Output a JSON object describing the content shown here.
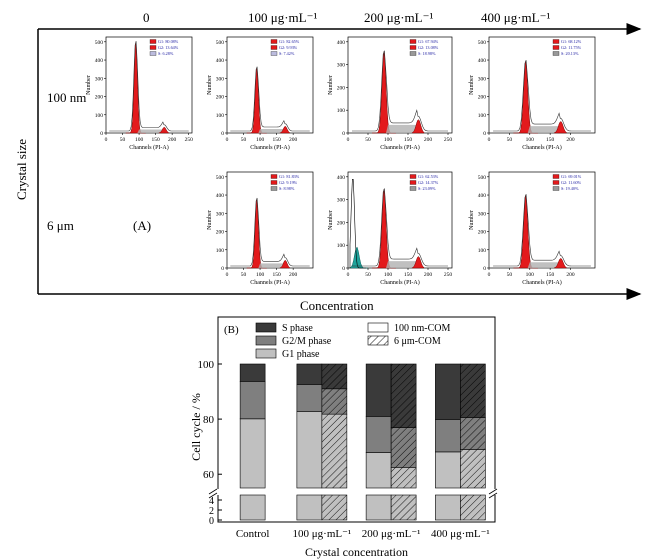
{
  "header": {
    "columns": [
      "0",
      "100 μg·mL⁻¹",
      "200 μg·mL⁻¹",
      "400 μg·mL⁻¹"
    ],
    "rows": [
      "100 nm",
      "6 μm"
    ],
    "y_axis_title": "Crystal size",
    "x_axis_title": "Concentration",
    "panel_a_label": "(A)"
  },
  "histograms": [
    {
      "id": "h00",
      "ylabel": "Number",
      "xlabel": "Channels (PI-A)",
      "yticks": [
        "0",
        "100",
        "200",
        "300",
        "400",
        "500"
      ],
      "xticks": [
        "0",
        "50",
        "100",
        "150",
        "200",
        "250"
      ],
      "legend": [
        "G1: 80.08%",
        "G2: 13.64%",
        "S: 6.28%"
      ],
      "legend_colors": [
        "#e31a1c",
        "#e31a1c",
        "#bbbbdd"
      ],
      "peak": 0.95,
      "g2": 0.06,
      "teal": false
    },
    {
      "id": "h01",
      "ylabel": "Number",
      "xlabel": "Channels (PI-A)",
      "yticks": [
        "0",
        "100",
        "200",
        "300",
        "400",
        "500"
      ],
      "xticks": [
        "0",
        "50",
        "100",
        "150",
        "200"
      ],
      "legend": [
        "G1: 82.65%",
        "G2: 9.93%",
        "S: 7.42%"
      ],
      "legend_colors": [
        "#e31a1c",
        "#e31a1c",
        "#bbbbdd"
      ],
      "peak": 0.68,
      "g2": 0.07,
      "teal": false
    },
    {
      "id": "h02",
      "ylabel": "Number",
      "xlabel": "Channels (PI-A)",
      "yticks": [
        "0",
        "100",
        "200",
        "300",
        "400"
      ],
      "xticks": [
        "0",
        "50",
        "100",
        "150",
        "200",
        "250"
      ],
      "legend": [
        "G1: 67.94%",
        "G2: 13.08%",
        "S: 18.98%"
      ],
      "legend_colors": [
        "#e31a1c",
        "#e31a1c",
        "#999999"
      ],
      "peak": 0.85,
      "g2": 0.14,
      "teal": false
    },
    {
      "id": "h03",
      "ylabel": "Number",
      "xlabel": "Channels (PI-A)",
      "yticks": [
        "0",
        "100",
        "200",
        "300",
        "400",
        "500"
      ],
      "xticks": [
        "0",
        "50",
        "100",
        "150",
        "200"
      ],
      "legend": [
        "G1: 68.12%",
        "G2: 11.75%",
        "S: 20.13%"
      ],
      "legend_colors": [
        "#e31a1c",
        "#e31a1c",
        "#999999"
      ],
      "peak": 0.75,
      "g2": 0.12,
      "teal": false
    },
    {
      "id": "h11",
      "ylabel": "Number",
      "xlabel": "Channels (PI-A)",
      "yticks": [
        "0",
        "100",
        "200",
        "300",
        "400",
        "500"
      ],
      "xticks": [
        "0",
        "50",
        "100",
        "150",
        "200"
      ],
      "legend": [
        "G1: 81.83%",
        "G2: 9.19%",
        "S: 8.98%"
      ],
      "legend_colors": [
        "#e31a1c",
        "#e31a1c",
        "#999999"
      ],
      "peak": 0.72,
      "g2": 0.08,
      "teal": false
    },
    {
      "id": "h12",
      "ylabel": "Number",
      "xlabel": "Channels (PI-A)",
      "yticks": [
        "0",
        "100",
        "200",
        "300",
        "400"
      ],
      "xticks": [
        "0",
        "50",
        "100",
        "150",
        "200",
        "250"
      ],
      "legend": [
        "G1: 62.53%",
        "G2: 14.37%",
        "S: 23.09%"
      ],
      "legend_colors": [
        "#e31a1c",
        "#e31a1c",
        "#999999"
      ],
      "peak": 0.82,
      "g2": 0.12,
      "teal": true
    },
    {
      "id": "h13",
      "ylabel": "Number",
      "xlabel": "Channels (PI-A)",
      "yticks": [
        "0",
        "100",
        "200",
        "300",
        "400",
        "500"
      ],
      "xticks": [
        "0",
        "50",
        "100",
        "150",
        "200"
      ],
      "legend": [
        "G1: 69.01%",
        "G2: 11.60%",
        "S: 19.40%"
      ],
      "legend_colors": [
        "#e31a1c",
        "#e31a1c",
        "#999999"
      ],
      "peak": 0.76,
      "g2": 0.1,
      "teal": false
    }
  ],
  "chart_data": {
    "type": "bar",
    "panel_label": "(B)",
    "categories": [
      "Control",
      "100 μg·mL⁻¹",
      "200 μg·mL⁻¹",
      "400 μg·mL⁻¹"
    ],
    "xlabel": "Crystal concentration",
    "ylabel": "Cell cycle / %",
    "ylim": [
      0,
      100
    ],
    "axis_break": [
      5,
      55
    ],
    "yticks_lower": [
      "0",
      "2",
      "4"
    ],
    "yticks_upper": [
      "60",
      "80",
      "100"
    ],
    "legend": {
      "phases": [
        "S phase",
        "G2/M phase",
        "G1 phase"
      ],
      "groups": [
        "100 nm-COM",
        "6 μm-COM"
      ]
    },
    "colors": {
      "S": "#3a3a3a",
      "G2M": "#7f7f7f",
      "G1": "#c0c0c0"
    },
    "series": [
      {
        "name": "100 nm-COM",
        "G1": [
          80.1,
          82.7,
          67.9,
          68.1
        ],
        "G2M": [
          13.6,
          9.9,
          13.1,
          11.8
        ],
        "S": [
          6.3,
          7.4,
          19.0,
          20.1
        ]
      },
      {
        "name": "6 μm-COM",
        "G1": [
          null,
          81.8,
          62.5,
          69.0
        ],
        "G2M": [
          null,
          9.2,
          14.4,
          11.6
        ],
        "S": [
          null,
          9.0,
          23.1,
          19.4
        ]
      }
    ]
  }
}
